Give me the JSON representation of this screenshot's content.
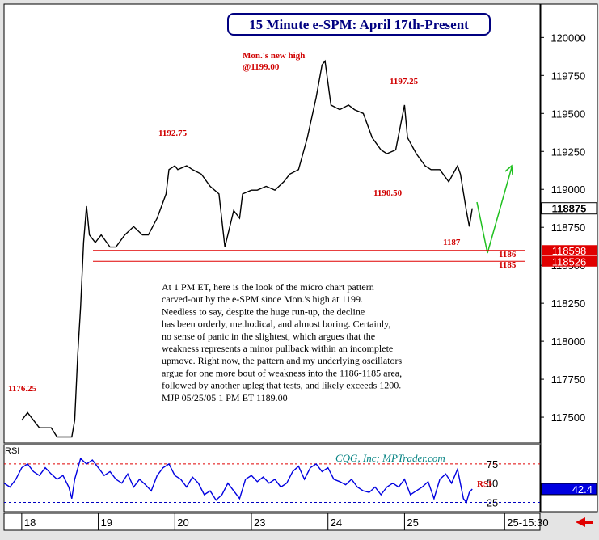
{
  "chart_data": [
    {
      "type": "line",
      "title": "15 Minute e-SPM: April 17th-Present",
      "x": [
        0,
        2,
        4,
        6,
        10,
        12,
        15,
        17,
        18,
        19,
        20,
        21,
        22,
        23,
        25,
        27,
        30,
        32,
        35,
        38,
        41,
        43,
        46,
        49,
        50,
        52,
        53,
        56,
        58,
        61,
        64,
        67,
        69,
        72,
        74,
        75,
        78,
        80,
        83,
        86,
        89,
        91,
        94,
        97,
        100,
        102,
        103,
        105,
        108,
        111,
        113,
        116,
        119,
        122,
        124,
        127,
        130,
        131,
        134,
        137,
        139,
        142,
        145,
        148,
        149,
        151,
        152,
        153
      ],
      "series": [
        {
          "color": "#000000",
          "values": [
            117480,
            117530,
            117480,
            117430,
            117430,
            117370,
            117370,
            117370,
            117480,
            117905,
            118225,
            118650,
            118890,
            118700,
            118650,
            118700,
            118620,
            118620,
            118700,
            118755,
            118700,
            118700,
            118810,
            118970,
            119130,
            119155,
            119130,
            119155,
            119130,
            119100,
            119020,
            118970,
            118620,
            118860,
            118810,
            118970,
            118995,
            118995,
            119020,
            118995,
            119050,
            119100,
            119130,
            119340,
            119605,
            119820,
            119845,
            119555,
            119525,
            119555,
            119525,
            119500,
            119340,
            119260,
            119235,
            119260,
            119555,
            119340,
            119235,
            119155,
            119130,
            119130,
            119050,
            119155,
            119100,
            118860,
            118755,
            118875
          ]
        }
      ],
      "xlim": [
        -6,
        176
      ],
      "ylim": [
        117330,
        120220
      ],
      "yticks": [
        117500,
        117750,
        118000,
        118250,
        118500,
        118750,
        119000,
        119250,
        119500,
        119750,
        120000
      ],
      "levels": [
        118598,
        118526
      ],
      "level_color": "#e00000",
      "annotations": [
        "Mon.'s new high",
        "@1199.00",
        "1197.25",
        "1192.75",
        "1190.50",
        "1187",
        "1186-",
        "1185",
        "1176.25"
      ],
      "note_lines": [
        "At 1 PM ET, here is the look of the micro chart pattern",
        "carved-out by the e-SPM since Mon.'s high at 1199.",
        "Needless to say, despite the huge run-up, the decline",
        "has been orderly, methodical, and almost boring. Certainly,",
        "no sense of panic in the slightest, which argues that the",
        "weakness represents a minor pullback within an incomplete",
        "upmove. Right now, the pattern and my underlying oscillators",
        "argue for one more bout of weakness into the 1186-1185 area,",
        "followed by another upleg that tests, and likely exceeds 1200.",
        "MJP 05/25/05  1 PM ET 1189.00"
      ]
    },
    {
      "type": "line",
      "title": "RSI",
      "x": [
        -6,
        -4,
        -2,
        0,
        2,
        4,
        6,
        8,
        10,
        12,
        14,
        16,
        17,
        18,
        20,
        22,
        24,
        26,
        28,
        30,
        32,
        34,
        36,
        38,
        40,
        42,
        44,
        46,
        48,
        50,
        52,
        54,
        56,
        58,
        60,
        62,
        64,
        66,
        68,
        70,
        72,
        74,
        76,
        78,
        80,
        82,
        84,
        86,
        88,
        90,
        92,
        94,
        96,
        98,
        100,
        102,
        104,
        106,
        108,
        110,
        112,
        114,
        116,
        118,
        120,
        122,
        124,
        126,
        128,
        130,
        132,
        134,
        136,
        138,
        140,
        142,
        144,
        146,
        148,
        150,
        151,
        152,
        153
      ],
      "series": [
        {
          "name": "RSI",
          "color": "#0000e0",
          "values": [
            50,
            45,
            55,
            70,
            75,
            65,
            60,
            70,
            62,
            55,
            60,
            45,
            30,
            55,
            82,
            75,
            80,
            70,
            60,
            65,
            55,
            50,
            62,
            45,
            55,
            48,
            40,
            60,
            70,
            75,
            60,
            55,
            45,
            58,
            50,
            35,
            40,
            28,
            35,
            50,
            40,
            30,
            55,
            60,
            52,
            58,
            50,
            55,
            45,
            50,
            65,
            72,
            55,
            70,
            75,
            65,
            70,
            55,
            52,
            48,
            55,
            45,
            40,
            38,
            45,
            35,
            45,
            50,
            45,
            55,
            35,
            40,
            45,
            52,
            30,
            55,
            62,
            50,
            68,
            30,
            25,
            38,
            42.4
          ]
        }
      ],
      "xlim": [
        -6,
        176
      ],
      "xticks": [
        {
          "value": 0,
          "label": "18"
        },
        {
          "value": 26,
          "label": "19"
        },
        {
          "value": 52,
          "label": "20"
        },
        {
          "value": 78,
          "label": "23"
        },
        {
          "value": 104,
          "label": "24"
        },
        {
          "value": 130,
          "label": "25"
        },
        {
          "value": 164,
          "label": "25-15:30"
        }
      ],
      "ylim": [
        13,
        100
      ],
      "yticks": [
        25,
        50,
        75
      ],
      "ref_lines": [
        {
          "value": 75,
          "color": "#e00000"
        },
        {
          "value": 25,
          "color": "#0000c0"
        }
      ],
      "credit": "CQG, Inc; MPTrader.com"
    }
  ]
}
